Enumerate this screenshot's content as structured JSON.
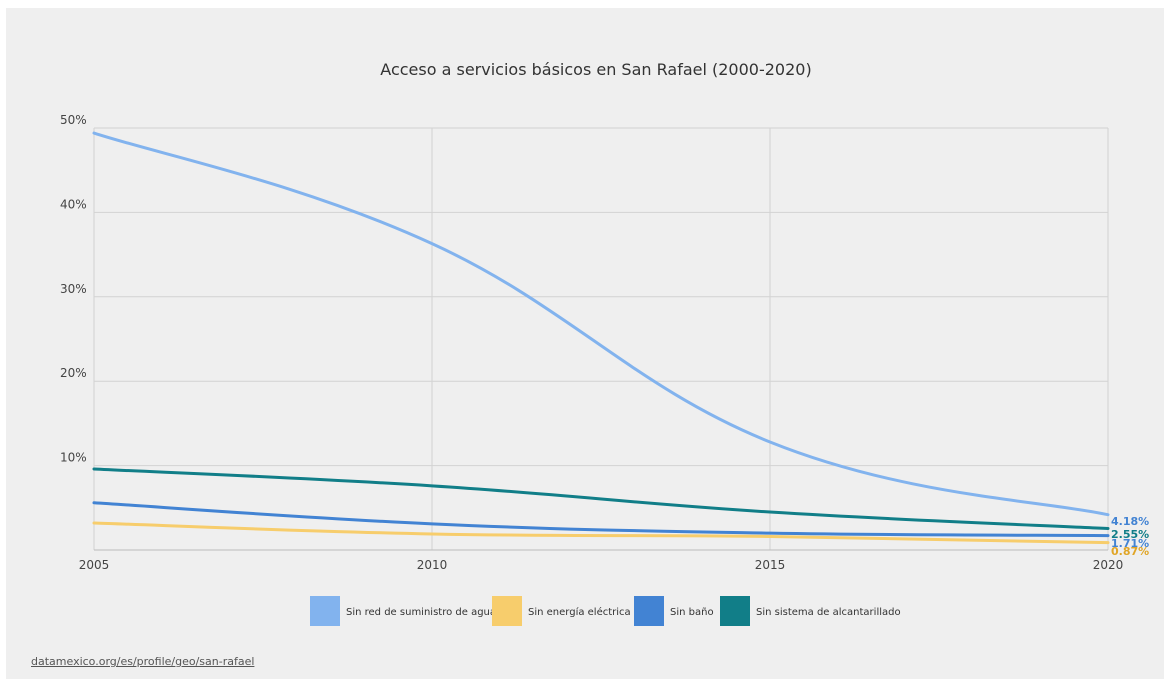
{
  "chart_data": {
    "type": "line",
    "title": "Acceso a servicios básicos en San Rafael (2000-2020)",
    "x": [
      2005,
      2010,
      2015,
      2020
    ],
    "x_ticks": [
      "2005",
      "2010",
      "2015",
      "2020"
    ],
    "y_ticks": [
      "10%",
      "20%",
      "30%",
      "40%",
      "50%"
    ],
    "xlim": [
      2005,
      2020
    ],
    "ylim": [
      0,
      50
    ],
    "grid": true,
    "legend_position": "bottom",
    "series": [
      {
        "name": "Sin red de suministro de agua",
        "values": [
          49.4,
          36.3,
          12.8,
          4.18
        ],
        "color": "#82b3ee",
        "end_label": "4.18%"
      },
      {
        "name": "Sin energía eléctrica",
        "values": [
          3.2,
          1.9,
          1.6,
          0.87
        ],
        "color": "#f7cd6c",
        "end_label": "0.87%"
      },
      {
        "name": "Sin baño",
        "values": [
          5.6,
          3.1,
          2.0,
          1.71
        ],
        "color": "#4283d3",
        "end_label": "1.71%"
      },
      {
        "name": "Sin sistema de alcantarillado",
        "values": [
          9.6,
          7.6,
          4.5,
          2.55
        ],
        "color": "#117e88",
        "end_label": "2.55%"
      }
    ]
  },
  "footer": {
    "source": "datamexico.org/es/profile/geo/san-rafael"
  }
}
